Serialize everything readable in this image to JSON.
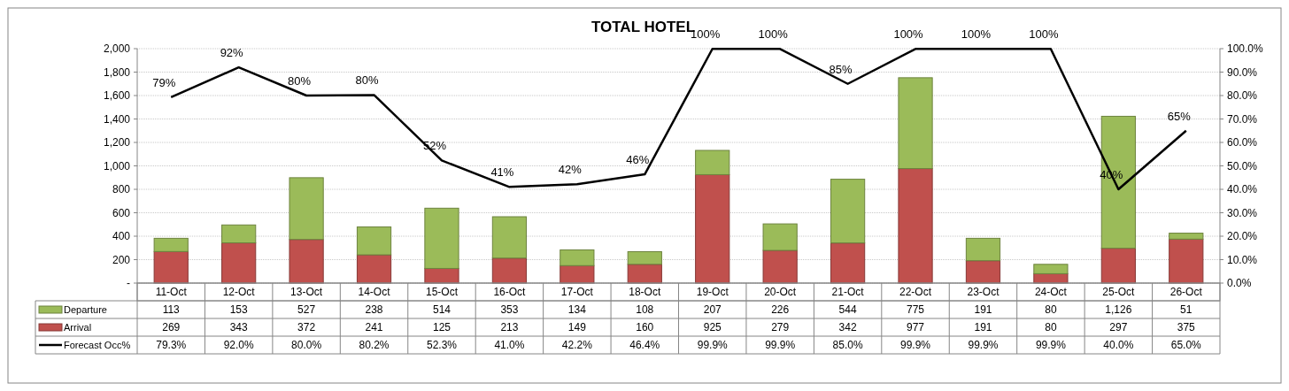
{
  "chart_data": {
    "type": "bar",
    "title": "TOTAL HOTEL",
    "stacked": true,
    "legend": "bottom",
    "grid": "y",
    "categories": [
      "11-Oct",
      "12-Oct",
      "13-Oct",
      "14-Oct",
      "15-Oct",
      "16-Oct",
      "17-Oct",
      "18-Oct",
      "19-Oct",
      "20-Oct",
      "21-Oct",
      "22-Oct",
      "23-Oct",
      "24-Oct",
      "25-Oct",
      "26-Oct"
    ],
    "series": [
      {
        "name": "Arrival",
        "color": "#c0504d",
        "values": [
          269,
          343,
          372,
          241,
          125,
          213,
          149,
          160,
          925,
          279,
          342,
          977,
          191,
          80,
          297,
          375
        ],
        "value_labels": [
          "269",
          "343",
          "372",
          "241",
          "125",
          "213",
          "149",
          "160",
          "925",
          "279",
          "342",
          "977",
          "191",
          "80",
          "297",
          "375"
        ]
      },
      {
        "name": "Departure",
        "color": "#9bbb59",
        "values": [
          113,
          153,
          527,
          238,
          514,
          353,
          134,
          108,
          207,
          226,
          544,
          775,
          191,
          80,
          1126,
          51
        ],
        "value_labels": [
          "113",
          "153",
          "527",
          "238",
          "514",
          "353",
          "134",
          "108",
          "207",
          "226",
          "544",
          "775",
          "191",
          "80",
          "1,126",
          "51"
        ]
      },
      {
        "name": "Forecast Occ%",
        "type": "line",
        "axis": "y2",
        "color": "#000000",
        "marker": "none",
        "values": [
          79.3,
          92.0,
          80.0,
          80.2,
          52.3,
          41.0,
          42.2,
          46.4,
          99.9,
          99.9,
          85.0,
          99.9,
          99.9,
          99.9,
          40.0,
          65.0
        ],
        "value_labels": [
          "79.3%",
          "92.0%",
          "80.0%",
          "80.2%",
          "52.3%",
          "41.0%",
          "42.2%",
          "46.4%",
          "99.9%",
          "99.9%",
          "85.0%",
          "99.9%",
          "99.9%",
          "99.9%",
          "40.0%",
          "65.0%"
        ]
      }
    ],
    "annotations": [
      "79%",
      "92%",
      "80%",
      "80%",
      "52%",
      "41%",
      "42%",
      "46%",
      "100%",
      "100%",
      "85%",
      "100%",
      "100%",
      "100%",
      "40%",
      "65%"
    ],
    "ylim": [
      0,
      2000
    ],
    "yticks": [
      {
        "value": 0,
        "label": "-"
      },
      {
        "value": 200,
        "label": "200"
      },
      {
        "value": 400,
        "label": "400"
      },
      {
        "value": 600,
        "label": "600"
      },
      {
        "value": 800,
        "label": "800"
      },
      {
        "value": 1000,
        "label": "1,000"
      },
      {
        "value": 1200,
        "label": "1,200"
      },
      {
        "value": 1400,
        "label": "1,400"
      },
      {
        "value": 1600,
        "label": "1,600"
      },
      {
        "value": 1800,
        "label": "1,800"
      },
      {
        "value": 2000,
        "label": "2,000"
      }
    ],
    "y2lim": [
      0,
      100
    ],
    "y2ticks": [
      {
        "value": 0,
        "label": "0.0%"
      },
      {
        "value": 10,
        "label": "10.0%"
      },
      {
        "value": 20,
        "label": "20.0%"
      },
      {
        "value": 30,
        "label": "30.0%"
      },
      {
        "value": 40,
        "label": "40.0%"
      },
      {
        "value": 50,
        "label": "50.0%"
      },
      {
        "value": 60,
        "label": "60.0%"
      },
      {
        "value": 70,
        "label": "70.0%"
      },
      {
        "value": 80,
        "label": "80.0%"
      },
      {
        "value": 90,
        "label": "90.0%"
      },
      {
        "value": 100,
        "label": "100.0%"
      }
    ]
  }
}
